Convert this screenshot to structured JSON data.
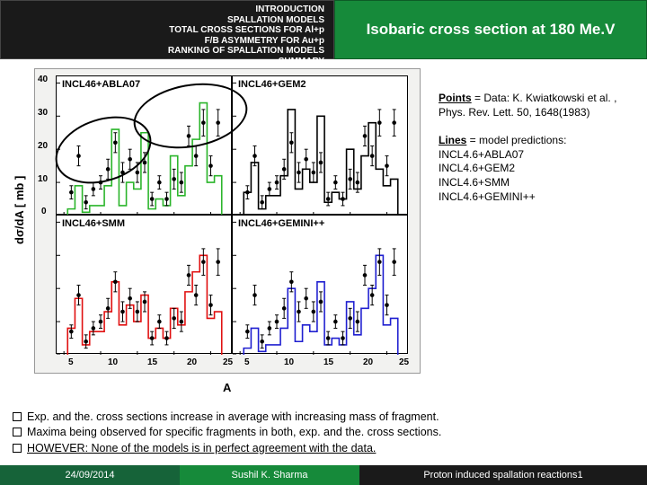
{
  "nav": {
    "items": [
      "INTRODUCTION",
      "SPALLATION MODELS",
      "TOTAL CROSS SECTIONS FOR Al+p",
      "F/B ASYMMETRY FOR Au+p",
      "RANKING OF SPALLATION MODELS",
      "SUMMARY"
    ]
  },
  "title": "Isobaric cross section at 180 Me.V",
  "side": {
    "data_heading": "Points",
    "data_text": " = Data: K. Kwiatkowski et al. , Phys. Rev. Lett. 50, 1648(1983)",
    "lines_heading": "Lines",
    "lines_text": " = model predictions:",
    "models": [
      "INCL4.6+ABLA07",
      "INCL4.6+GEM2",
      "INCL4.6+SMM",
      "INCL4.6+GEMINI++"
    ]
  },
  "chart": {
    "bg_color": "#f2f2f0",
    "x_label": "A",
    "y_label": "dσ/dA [ mb ]",
    "y_ticks": [
      0,
      10,
      20,
      30,
      40
    ],
    "x_ticks": [
      5,
      10,
      15,
      20,
      25
    ],
    "panels": [
      {
        "label": "INCL46+ABLA07",
        "color": "#2bb52b"
      },
      {
        "label": "INCL46+GEM2",
        "color": "#000000"
      },
      {
        "label": "INCL46+SMM",
        "color": "#e01010"
      },
      {
        "label": "INCL46+GEMINI++",
        "color": "#2020d0"
      }
    ],
    "data_points": {
      "A": [
        6,
        7,
        8,
        9,
        10,
        11,
        12,
        13,
        14,
        15,
        16,
        17,
        18,
        19,
        20,
        21,
        22,
        23,
        24,
        25,
        26
      ],
      "y": [
        7,
        18,
        4,
        8,
        10,
        14,
        22,
        13,
        17,
        13,
        16,
        5,
        10,
        5,
        11,
        10,
        24,
        18,
        28,
        15,
        28
      ],
      "err": [
        2,
        3,
        2,
        2,
        2,
        3,
        3,
        3,
        3,
        3,
        3,
        2,
        2,
        2,
        3,
        3,
        3,
        3,
        4,
        3,
        4
      ]
    },
    "models_hist": {
      "INCL46+ABLA07": [
        2,
        9,
        1,
        3,
        3,
        9,
        26,
        3,
        10,
        8,
        25,
        2,
        5,
        3,
        18,
        6,
        15,
        23,
        34,
        10,
        12
      ],
      "INCL46+GEM2": [
        7,
        16,
        2,
        6,
        6,
        12,
        32,
        8,
        14,
        10,
        30,
        4,
        7,
        5,
        20,
        8,
        18,
        28,
        14,
        9,
        11
      ],
      "INCL46+SMM": [
        8,
        17,
        3,
        7,
        7,
        13,
        22,
        9,
        15,
        10,
        18,
        5,
        8,
        5,
        14,
        9,
        19,
        25,
        30,
        11,
        13
      ],
      "INCL46+GEMINI++": [
        2,
        8,
        1,
        3,
        3,
        8,
        20,
        4,
        9,
        7,
        22,
        3,
        5,
        3,
        16,
        6,
        14,
        20,
        30,
        9,
        11
      ]
    }
  },
  "bullets": [
    "Exp. and the. cross sections increase in average with increasing mass of fragment.",
    "Maxima being observed for specific fragments in both, exp. and the. cross sections.",
    "HOWEVER: None of the models is in perfect  agreement with the data."
  ],
  "footer": {
    "date": "24/09/2014",
    "author": "Sushil K. Sharma",
    "topic": "Proton induced spallation reactions",
    "page": "1"
  }
}
